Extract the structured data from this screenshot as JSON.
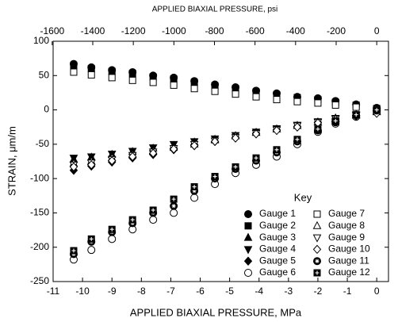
{
  "chart_data": {
    "type": "scatter",
    "top_axis_label": "APPLIED BIAXIAL PRESSURE, psi",
    "x_label": "APPLIED BIAXIAL PRESSURE, MPa",
    "y_label": "STRAIN, μm/m",
    "legend_title": "Key",
    "x": [
      -10.3,
      -9.7,
      -9.0,
      -8.3,
      -7.6,
      -6.9,
      -6.2,
      -5.5,
      -4.8,
      -4.1,
      -3.4,
      -2.7,
      -2.0,
      -1.4,
      -0.7,
      0
    ],
    "series": [
      {
        "name": "Gauge 1",
        "marker": "circle",
        "filled": true,
        "color": "#000000",
        "values": [
          67,
          62,
          58,
          55,
          50,
          47,
          42,
          37,
          33,
          28,
          24,
          19,
          17,
          13,
          8,
          3
        ]
      },
      {
        "name": "Gauge 2",
        "marker": "square",
        "filled": true,
        "color": "#000000",
        "values": [
          65,
          60,
          56,
          53,
          48,
          45,
          40,
          35,
          31,
          26,
          22,
          18,
          15,
          11,
          7,
          2
        ]
      },
      {
        "name": "Gauge 3",
        "marker": "triangle",
        "filled": true,
        "color": "#000000",
        "values": [
          -72,
          -69,
          -65,
          -61,
          -56,
          -52,
          -47,
          -43,
          -38,
          -33,
          -28,
          -23,
          -18,
          -13,
          -8,
          -3
        ]
      },
      {
        "name": "Gauge 4",
        "marker": "triangle-down",
        "filled": true,
        "color": "#000000",
        "values": [
          -70,
          -68,
          -64,
          -60,
          -55,
          -50,
          -46,
          -42,
          -37,
          -32,
          -27,
          -22,
          -17,
          -12,
          -7,
          -2
        ]
      },
      {
        "name": "Gauge 5",
        "marker": "diamond",
        "filled": true,
        "color": "#000000",
        "values": [
          -88,
          -82,
          -76,
          -70,
          -65,
          -58,
          -52,
          -46,
          -40,
          -34,
          -29,
          -24,
          -18,
          -13,
          -8,
          -3
        ]
      },
      {
        "name": "Gauge 6",
        "marker": "circle",
        "filled": false,
        "color": "#000000",
        "values": [
          -218,
          -204,
          -188,
          -174,
          -160,
          -150,
          -128,
          -108,
          -92,
          -80,
          -68,
          -50,
          -32,
          -20,
          -10,
          -2
        ]
      },
      {
        "name": "Gauge 7",
        "marker": "square",
        "filled": false,
        "color": "#000000",
        "values": [
          55,
          51,
          47,
          43,
          40,
          36,
          31,
          27,
          23,
          19,
          15,
          12,
          10,
          7,
          4,
          1
        ]
      },
      {
        "name": "Gauge 8",
        "marker": "triangle",
        "filled": false,
        "color": "#000000",
        "values": [
          -78,
          -75,
          -70,
          -65,
          -60,
          -55,
          -50,
          -44,
          -38,
          -33,
          -28,
          -23,
          -18,
          -12,
          -7,
          -2
        ]
      },
      {
        "name": "Gauge 9",
        "marker": "triangle-down",
        "filled": false,
        "color": "#000000",
        "values": [
          -80,
          -77,
          -72,
          -66,
          -61,
          -56,
          -50,
          -45,
          -40,
          -34,
          -29,
          -23,
          -18,
          -13,
          -8,
          -4
        ]
      },
      {
        "name": "Gauge 10",
        "marker": "diamond",
        "filled": false,
        "color": "#000000",
        "values": [
          -83,
          -80,
          -74,
          -68,
          -63,
          -57,
          -52,
          -46,
          -41,
          -35,
          -30,
          -25,
          -19,
          -14,
          -9,
          -5
        ]
      },
      {
        "name": "Gauge 11",
        "marker": "circle-star",
        "filled": true,
        "color": "#000000",
        "values": [
          -210,
          -192,
          -178,
          -165,
          -150,
          -140,
          -118,
          -100,
          -86,
          -74,
          -62,
          -46,
          -30,
          -18,
          -8,
          -1
        ]
      },
      {
        "name": "Gauge 12",
        "marker": "square-plus",
        "filled": true,
        "color": "#000000",
        "values": [
          -205,
          -188,
          -174,
          -160,
          -146,
          -130,
          -112,
          -97,
          -83,
          -70,
          -58,
          -43,
          -28,
          -16,
          -7,
          0
        ]
      }
    ],
    "xlim": [
      -11,
      0.4
    ],
    "xticks": [
      -11,
      -10,
      -9,
      -8,
      -7,
      -6,
      -5,
      -4,
      -3,
      -2,
      -1,
      0
    ],
    "x2lim": [
      -1595.4,
      58.0
    ],
    "x2ticks": [
      -1600,
      -1400,
      -1200,
      -1000,
      -800,
      -600,
      -400,
      -200,
      0
    ],
    "ylim": [
      -250,
      100
    ],
    "yticks": [
      -250,
      -200,
      -150,
      -100,
      -50,
      0,
      50,
      100
    ],
    "grid": false
  }
}
